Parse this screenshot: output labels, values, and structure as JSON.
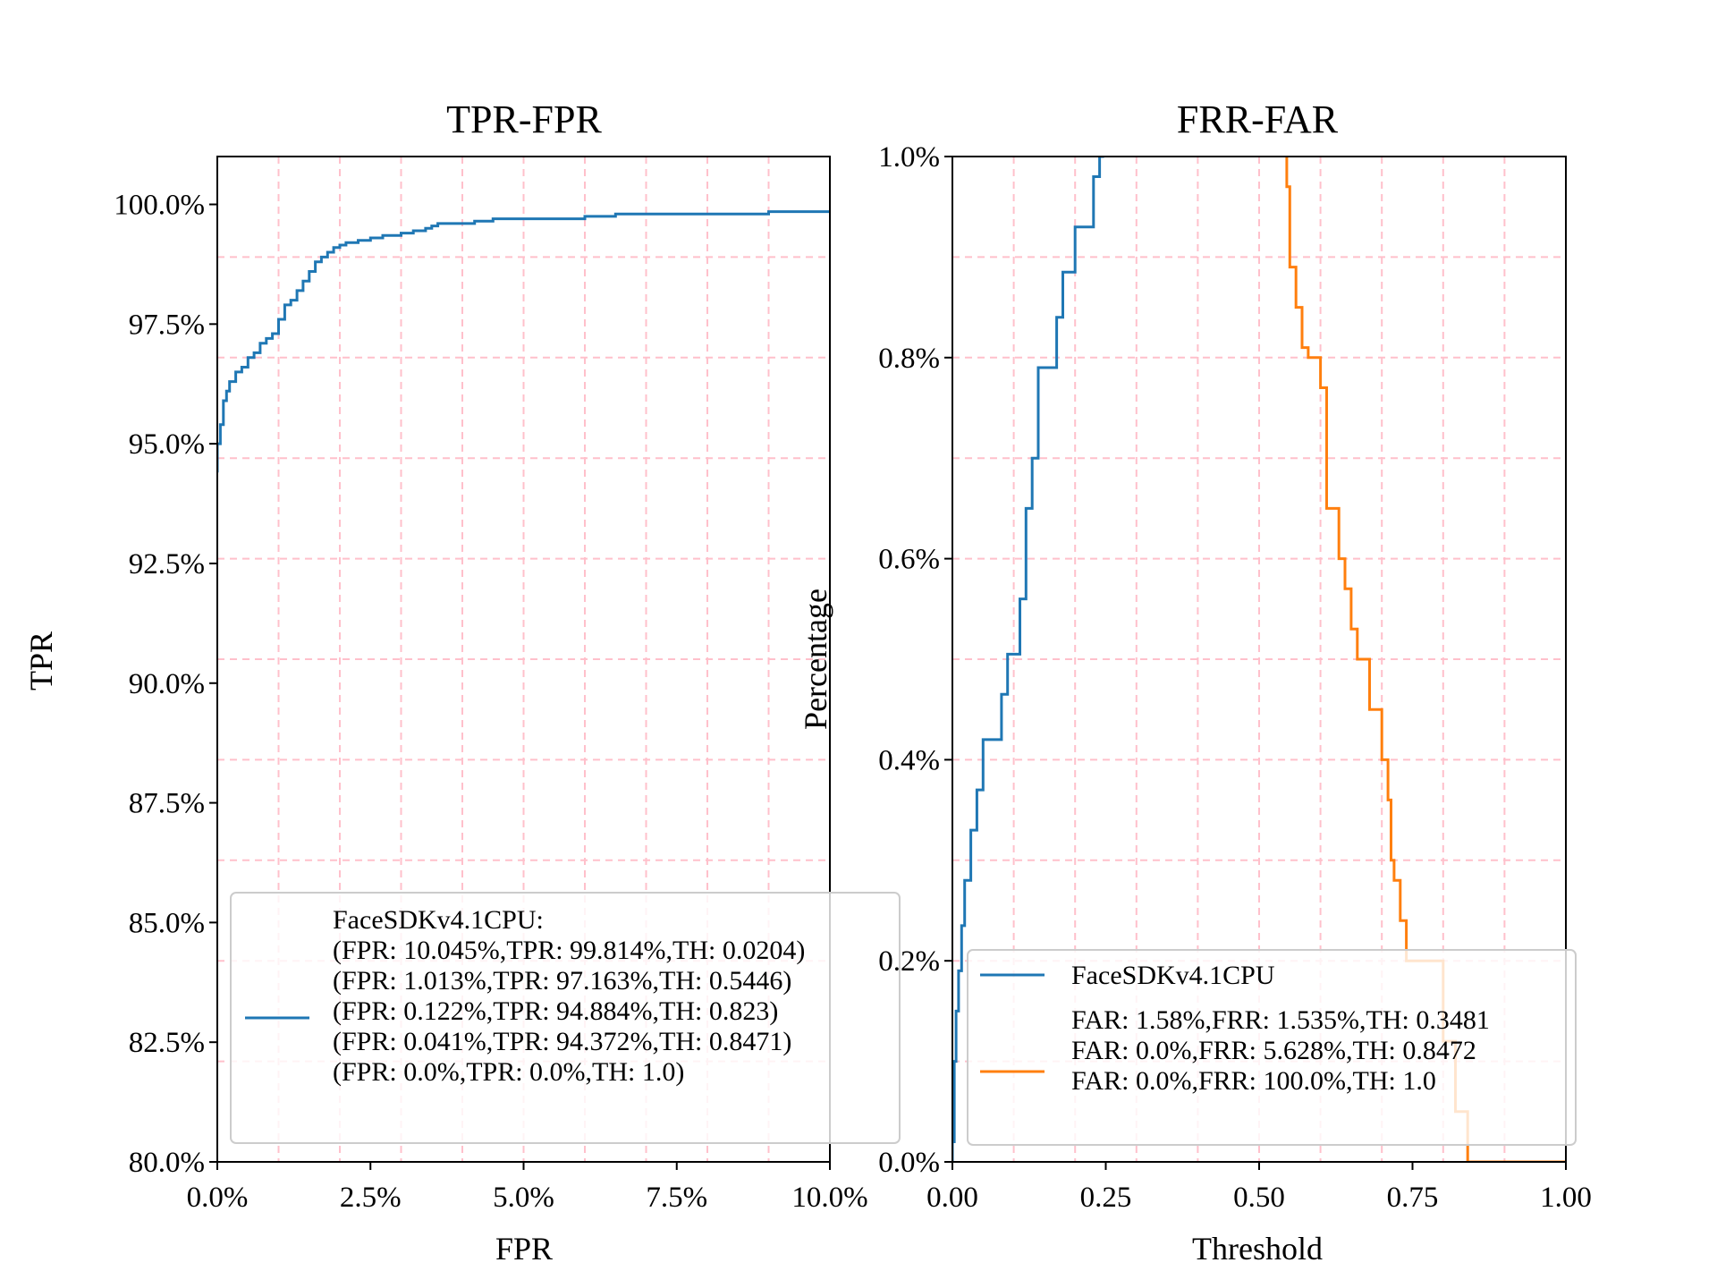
{
  "chart_data": [
    {
      "type": "line",
      "title": "TPR-FPR",
      "xlabel": "FPR",
      "ylabel": "TPR",
      "xlim": [
        0,
        10
      ],
      "ylim": [
        80,
        101
      ],
      "x_ticks": [
        "0.0%",
        "2.5%",
        "5.0%",
        "7.5%",
        "10.0%"
      ],
      "y_ticks": [
        "80.0%",
        "82.5%",
        "85.0%",
        "87.5%",
        "90.0%",
        "92.5%",
        "95.0%",
        "97.5%",
        "100.0%"
      ],
      "grid": true,
      "grid_style": "dashed",
      "grid_color": "#ffc0cb",
      "legend_position": "lower-right",
      "series": [
        {
          "name": "FaceSDKv4.1CPU",
          "color": "#1f77b4",
          "x": [
            0,
            0.05,
            0.1,
            0.15,
            0.2,
            0.3,
            0.4,
            0.5,
            0.6,
            0.7,
            0.8,
            0.9,
            1.0,
            1.1,
            1.2,
            1.3,
            1.4,
            1.5,
            1.6,
            1.7,
            1.8,
            1.9,
            2.0,
            2.1,
            2.2,
            2.3,
            2.5,
            2.7,
            2.8,
            3.0,
            3.2,
            3.4,
            3.5,
            3.6,
            3.8,
            4.2,
            4.5,
            5.0,
            5.5,
            6.0,
            6.5,
            7.0,
            8.0,
            9.0,
            9.3,
            10.0
          ],
          "y": [
            94.4,
            95.0,
            95.4,
            95.9,
            96.1,
            96.3,
            96.5,
            96.6,
            96.8,
            96.9,
            97.1,
            97.2,
            97.3,
            97.6,
            97.9,
            98.0,
            98.2,
            98.4,
            98.6,
            98.8,
            98.9,
            99.0,
            99.1,
            99.15,
            99.2,
            99.2,
            99.25,
            99.3,
            99.35,
            99.35,
            99.4,
            99.45,
            99.5,
            99.55,
            99.6,
            99.6,
            99.65,
            99.7,
            99.7,
            99.7,
            99.75,
            99.8,
            99.8,
            99.8,
            99.85,
            99.85
          ]
        }
      ],
      "legend": {
        "title": "FaceSDKv4.1CPU:",
        "lines": [
          "(FPR: 10.045%,TPR: 99.814%,TH: 0.0204)",
          "(FPR: 1.013%,TPR: 97.163%,TH: 0.5446)",
          "(FPR: 0.122%,TPR: 94.884%,TH: 0.823)",
          "(FPR: 0.041%,TPR: 94.372%,TH: 0.8471)",
          "(FPR: 0.0%,TPR: 0.0%,TH: 1.0)"
        ]
      }
    },
    {
      "type": "line",
      "title": "FRR-FAR",
      "xlabel": "Threshold",
      "ylabel": "Percentage",
      "xlim": [
        0,
        1
      ],
      "ylim": [
        0,
        1
      ],
      "x_ticks": [
        "0.00",
        "0.25",
        "0.50",
        "0.75",
        "1.00"
      ],
      "y_ticks": [
        "0.0%",
        "0.2%",
        "0.4%",
        "0.6%",
        "0.8%",
        "1.0%"
      ],
      "grid": true,
      "grid_style": "dashed",
      "grid_color": "#ffc0cb",
      "legend_position": "lower-right",
      "series": [
        {
          "name": "FaceSDKv4.1CPU",
          "color": "#1f77b4",
          "x": [
            0.0,
            0.003,
            0.006,
            0.01,
            0.015,
            0.02,
            0.03,
            0.04,
            0.05,
            0.08,
            0.09,
            0.11,
            0.12,
            0.13,
            0.14,
            0.17,
            0.18,
            0.2,
            0.23,
            0.24,
            0.245,
            0.25
          ],
          "y": [
            0.0,
            0.02,
            0.1,
            0.15,
            0.19,
            0.235,
            0.28,
            0.33,
            0.37,
            0.42,
            0.465,
            0.505,
            0.56,
            0.65,
            0.7,
            0.79,
            0.84,
            0.885,
            0.93,
            0.98,
            1.0,
            1.05
          ]
        },
        {
          "name": "FAR",
          "color": "#ff7f0e",
          "x": [
            0.545,
            0.55,
            0.56,
            0.57,
            0.58,
            0.6,
            0.61,
            0.63,
            0.64,
            0.65,
            0.66,
            0.68,
            0.7,
            0.71,
            0.715,
            0.72,
            0.73,
            0.74,
            0.76,
            0.8,
            0.82,
            0.84,
            0.85,
            1.0
          ],
          "y": [
            1.0,
            0.97,
            0.89,
            0.85,
            0.81,
            0.8,
            0.77,
            0.65,
            0.6,
            0.57,
            0.53,
            0.5,
            0.45,
            0.4,
            0.36,
            0.3,
            0.28,
            0.24,
            0.2,
            0.2,
            0.12,
            0.05,
            0.0,
            0.0
          ]
        }
      ],
      "legend": {
        "title": "FaceSDKv4.1CPU",
        "lines": [
          "FAR: 1.58%,FRR: 1.535%,TH: 0.3481",
          "FAR: 0.0%,FRR: 5.628%,TH: 0.8472",
          "FAR: 0.0%,FRR: 100.0%,TH: 1.0"
        ]
      }
    }
  ]
}
